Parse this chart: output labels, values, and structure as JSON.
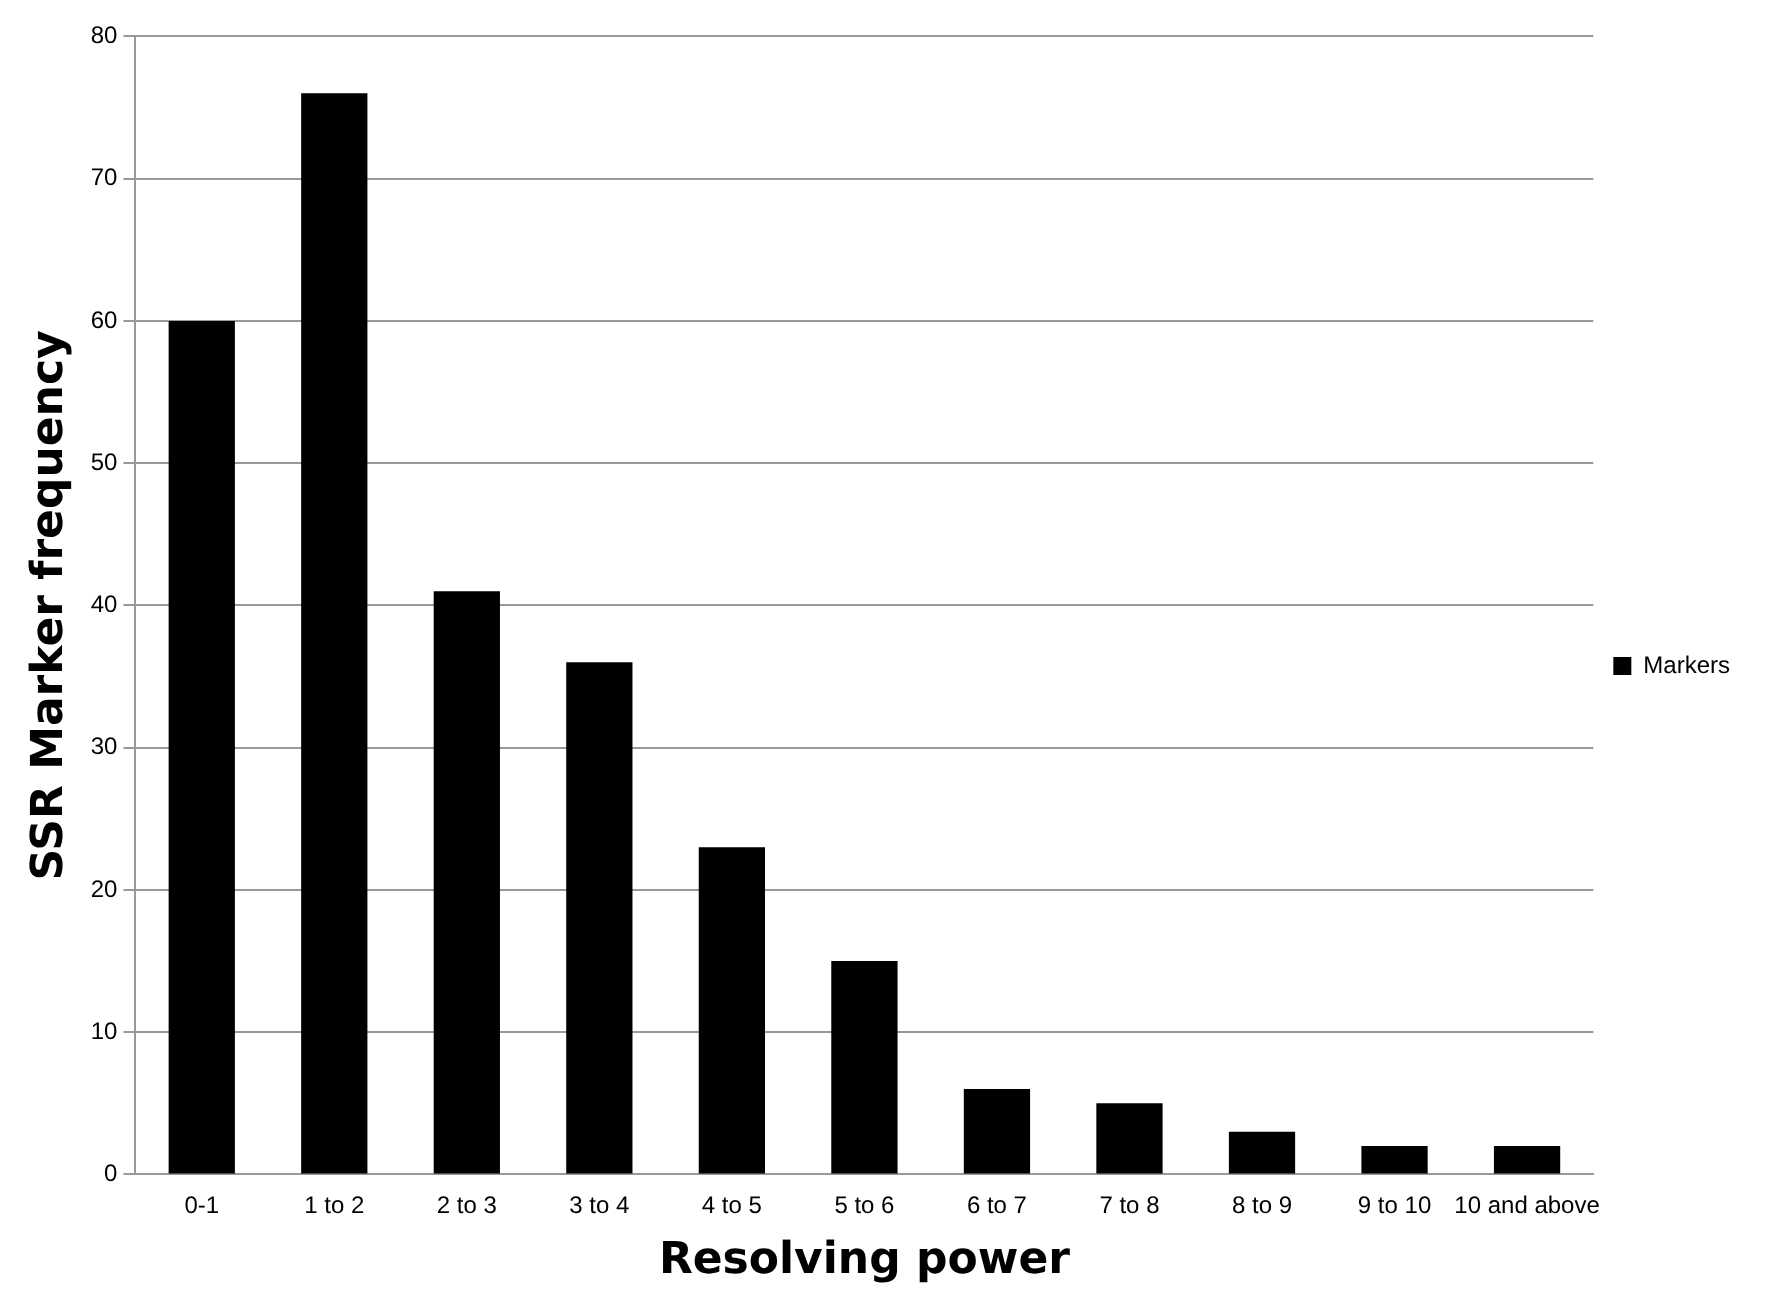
{
  "chart_data": {
    "type": "bar",
    "xlabel": "Resolving power",
    "ylabel": "SSR Marker frequency",
    "categories": [
      "0-1",
      "1 to 2",
      "2 to 3",
      "3 to 4",
      "4 to 5",
      "5 to 6",
      "6 to 7",
      "7 to 8",
      "8 to 9",
      "9 to 10",
      "10 and above"
    ],
    "series": [
      {
        "name": "Markers",
        "color": "#000000",
        "values": [
          60,
          76,
          41,
          36,
          23,
          15,
          6,
          5,
          3,
          2,
          2
        ]
      }
    ],
    "ylim": [
      0,
      80
    ],
    "yticks": [
      0,
      10,
      20,
      30,
      40,
      50,
      60,
      70,
      80
    ],
    "grid": "y",
    "legend": "right"
  }
}
